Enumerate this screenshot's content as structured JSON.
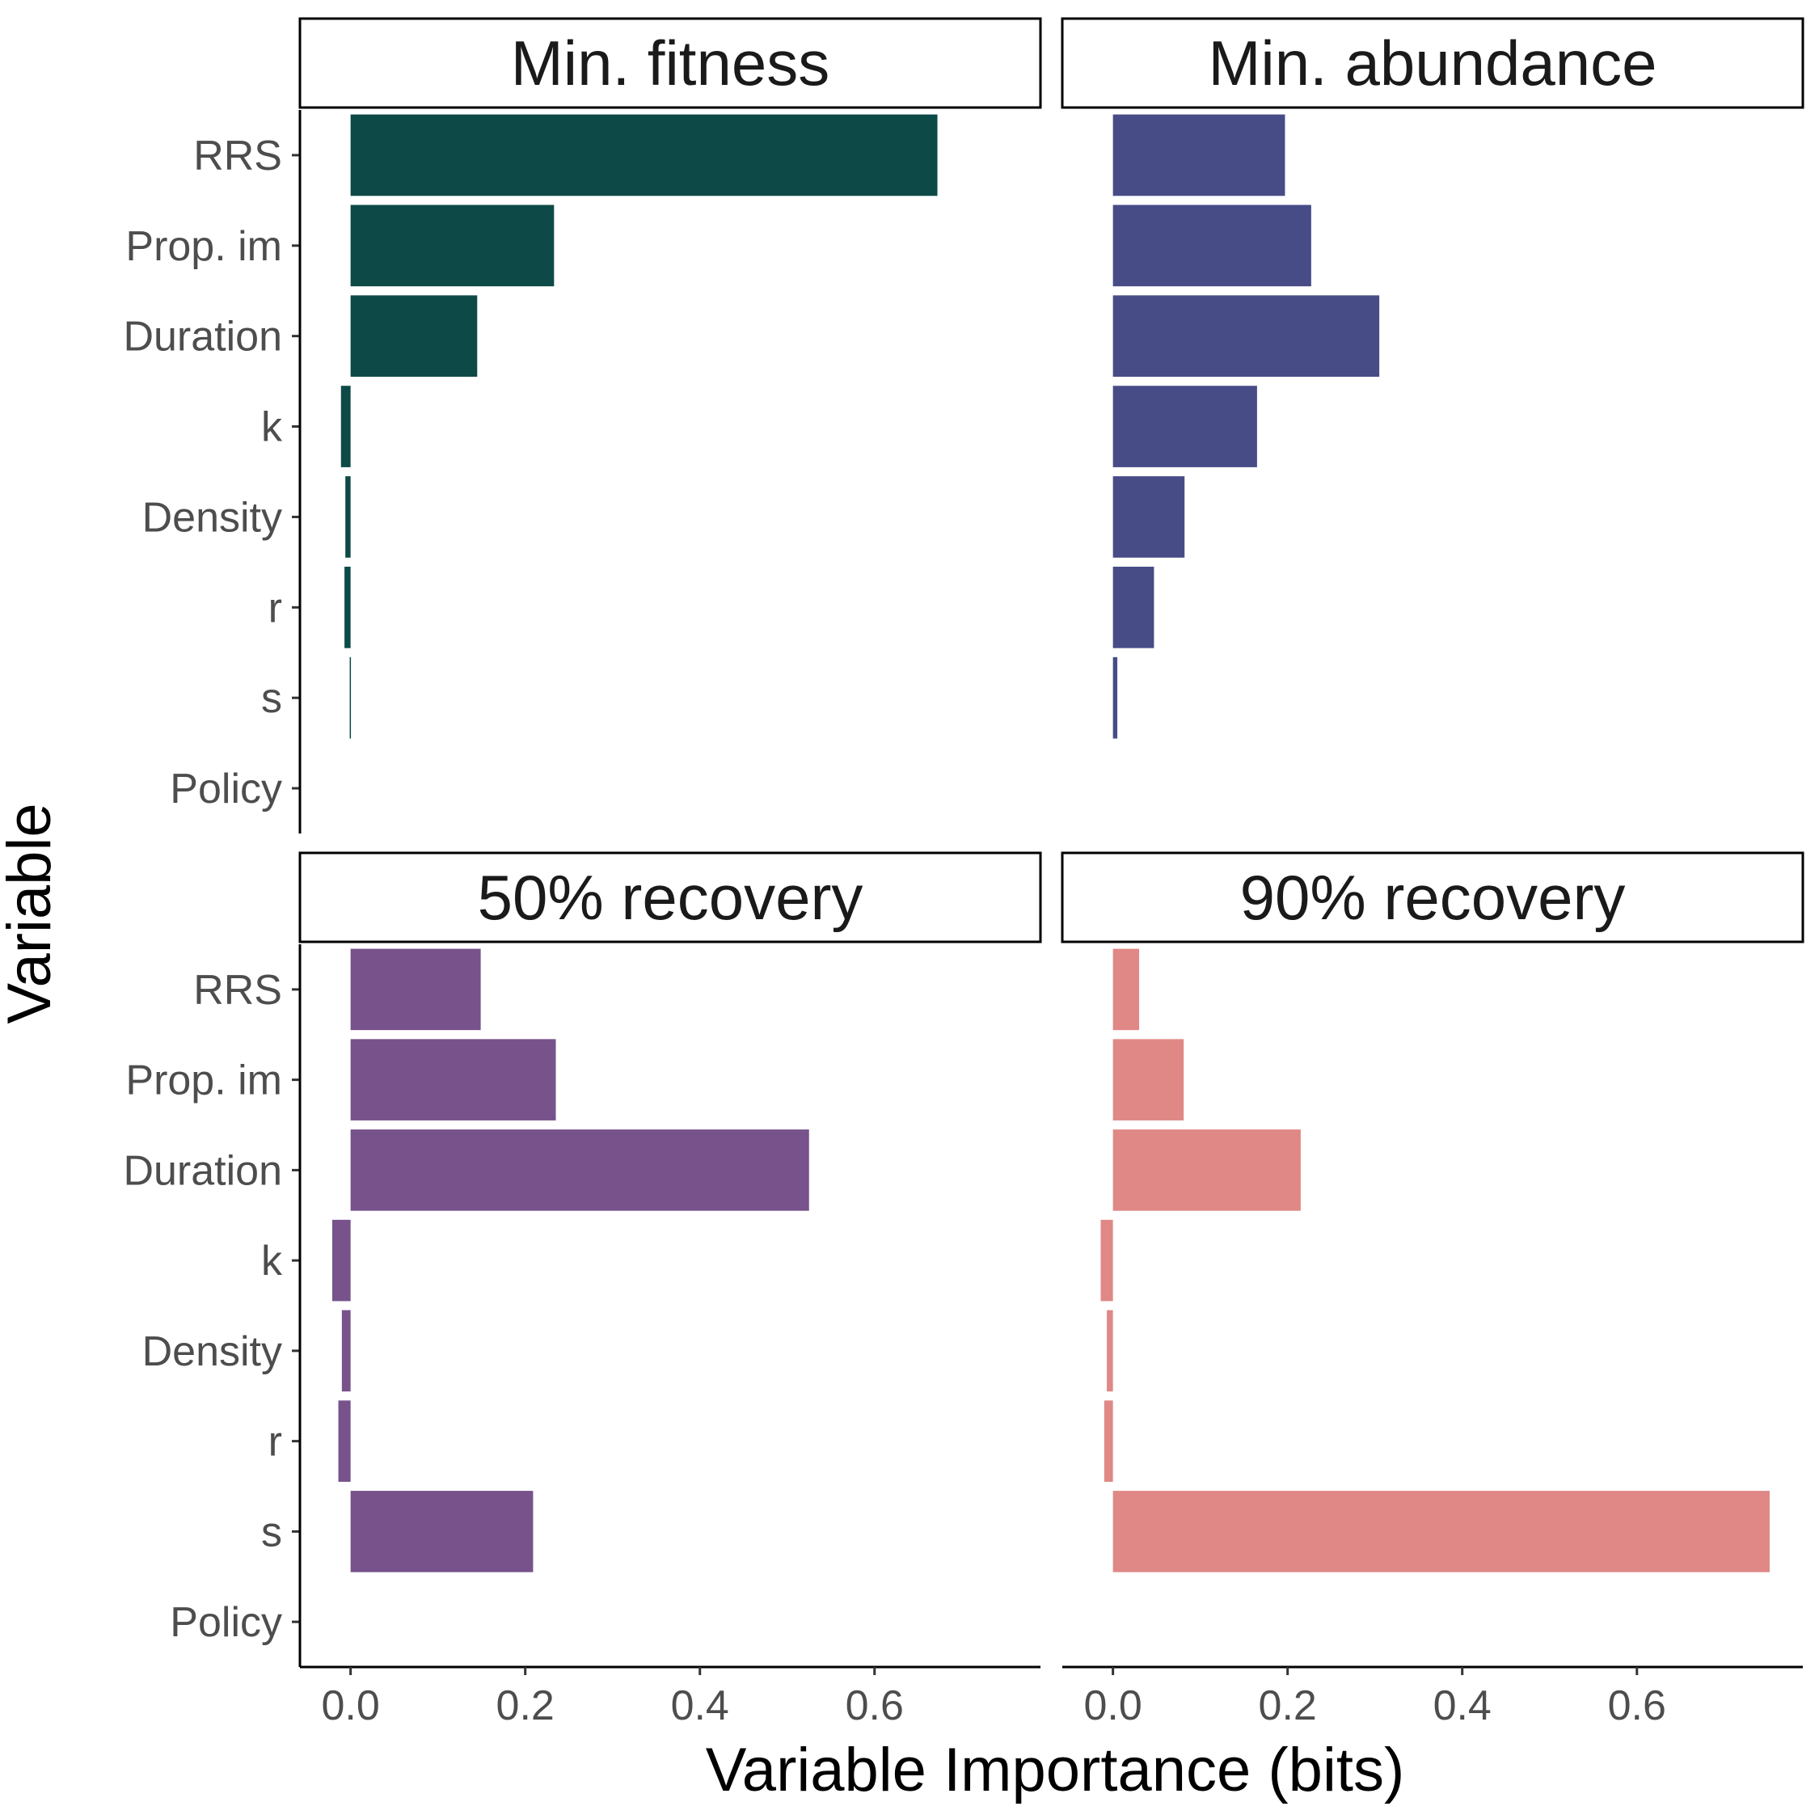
{
  "chart_data": {
    "type": "bar",
    "orientation": "horizontal",
    "xlabel": "Variable Importance (bits)",
    "ylabel": "Variable",
    "categories": [
      "RRS",
      "Prop. im",
      "Duration",
      "k",
      "Density",
      "r",
      "s",
      "Policy"
    ],
    "x_ticks": [
      0.0,
      0.2,
      0.4,
      0.6
    ],
    "x_tick_labels": [
      "0.0",
      "0.2",
      "0.4",
      "0.6"
    ],
    "xlim": [
      -0.058,
      0.79
    ],
    "grid": false,
    "panels": [
      {
        "title": "Min. fitness",
        "color": "#0d4a47",
        "values": [
          0.672,
          0.233,
          0.145,
          -0.011,
          -0.006,
          -0.007,
          -0.001,
          0
        ]
      },
      {
        "title": "Min. abundance",
        "color": "#474c87",
        "values": [
          0.197,
          0.227,
          0.305,
          0.165,
          0.082,
          0.047,
          0.005,
          0
        ]
      },
      {
        "title": "50% recovery",
        "color": "#77528b",
        "values": [
          0.149,
          0.235,
          0.525,
          -0.021,
          -0.01,
          -0.014,
          0.209,
          0
        ]
      },
      {
        "title": "90% recovery",
        "color": "#df8886",
        "values": [
          0.03,
          0.081,
          0.215,
          -0.014,
          -0.007,
          -0.01,
          0.752,
          0
        ]
      }
    ]
  }
}
